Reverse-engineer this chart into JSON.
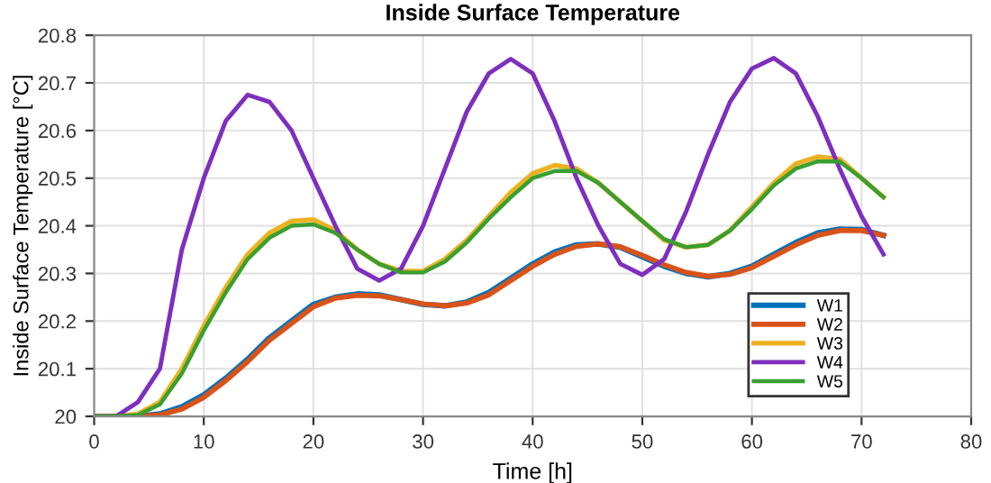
{
  "chart_data": {
    "type": "line",
    "title": "Inside Surface Temperature",
    "xlabel": "Time [h]",
    "ylabel": "Inside Surface Temperature [°C]",
    "x": [
      0,
      2,
      4,
      6,
      8,
      10,
      12,
      14,
      16,
      18,
      20,
      22,
      24,
      26,
      28,
      30,
      32,
      34,
      36,
      38,
      40,
      42,
      44,
      46,
      48,
      50,
      52,
      54,
      56,
      58,
      60,
      62,
      64,
      66,
      68,
      70,
      72
    ],
    "series": [
      {
        "name": "W1",
        "color": "#0072bd",
        "values": [
          20,
          20,
          20,
          20.005,
          20.02,
          20.045,
          20.08,
          20.12,
          20.165,
          20.2,
          20.235,
          20.25,
          20.257,
          20.255,
          20.245,
          20.235,
          20.232,
          20.24,
          20.26,
          20.29,
          20.32,
          20.345,
          20.36,
          20.362,
          20.355,
          20.335,
          20.315,
          20.3,
          20.293,
          20.3,
          20.315,
          20.34,
          20.365,
          20.385,
          20.393,
          20.392,
          20.38
        ]
      },
      {
        "name": "W2",
        "color": "#d95319",
        "values": [
          20,
          20,
          20,
          20.003,
          20.015,
          20.04,
          20.075,
          20.115,
          20.16,
          20.195,
          20.23,
          20.248,
          20.254,
          20.253,
          20.245,
          20.236,
          20.232,
          20.238,
          20.255,
          20.285,
          20.315,
          20.34,
          20.357,
          20.362,
          20.356,
          20.338,
          20.318,
          20.302,
          20.294,
          20.298,
          20.312,
          20.336,
          20.36,
          20.38,
          20.39,
          20.39,
          20.38
        ]
      },
      {
        "name": "W3",
        "color": "#edb120",
        "values": [
          20,
          20,
          20.005,
          20.03,
          20.1,
          20.19,
          20.27,
          20.34,
          20.385,
          20.41,
          20.413,
          20.39,
          20.35,
          20.32,
          20.305,
          20.305,
          20.33,
          20.37,
          20.42,
          20.47,
          20.51,
          20.527,
          20.52,
          20.49,
          20.45,
          20.41,
          20.37,
          20.355,
          20.36,
          20.39,
          20.44,
          20.49,
          20.53,
          20.545,
          20.54,
          20.5,
          20.46
        ]
      },
      {
        "name": "W4",
        "color": "#7e2fbe",
        "values": [
          20,
          20,
          20.03,
          20.1,
          20.35,
          20.5,
          20.62,
          20.675,
          20.66,
          20.6,
          20.5,
          20.4,
          20.31,
          20.285,
          20.31,
          20.4,
          20.52,
          20.64,
          20.72,
          20.75,
          20.72,
          20.62,
          20.5,
          20.4,
          20.32,
          20.297,
          20.33,
          20.43,
          20.55,
          20.66,
          20.73,
          20.752,
          20.72,
          20.63,
          20.52,
          20.42,
          20.34
        ]
      },
      {
        "name": "W5",
        "color": "#3a9f30",
        "values": [
          20,
          20,
          20.003,
          20.025,
          20.09,
          20.18,
          20.26,
          20.33,
          20.375,
          20.4,
          20.403,
          20.385,
          20.35,
          20.32,
          20.302,
          20.302,
          20.325,
          20.365,
          20.415,
          20.46,
          20.5,
          20.515,
          20.515,
          20.49,
          20.45,
          20.41,
          20.372,
          20.355,
          20.36,
          20.39,
          20.435,
          20.485,
          20.52,
          20.535,
          20.535,
          20.5,
          20.46
        ]
      }
    ],
    "xlim": [
      0,
      80
    ],
    "xticks": [
      0,
      10,
      20,
      30,
      40,
      50,
      60,
      70,
      80
    ],
    "ylim": [
      20,
      20.8
    ],
    "yticks": [
      20,
      20.1,
      20.2,
      20.3,
      20.4,
      20.5,
      20.6,
      20.7,
      20.8
    ],
    "grid": true,
    "legend": "bottom right",
    "marker": "none",
    "line_style": "solid"
  }
}
